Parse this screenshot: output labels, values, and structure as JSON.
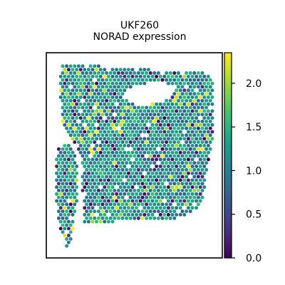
{
  "chart_data": {
    "type": "heatmap",
    "title_lines": [
      "UKF260",
      "NORAD expression"
    ],
    "xlabel": "",
    "ylabel": "",
    "grid": false,
    "colormap": "viridis",
    "colorbar": {
      "range": [
        0.0,
        2.35
      ],
      "ticks": [
        0.0,
        0.5,
        1.0,
        1.5,
        2.0
      ],
      "tick_labels": [
        "0.0",
        "0.5",
        "1.0",
        "1.5",
        "2.0"
      ]
    },
    "spots": {
      "description_note": "Hexagonal spatial transcriptomics spots; per-spot NORAD expression values in [0, 2.35], typical around 1.0–1.5.",
      "value_range": [
        0.0,
        2.35
      ],
      "typical_value": 1.2
    }
  }
}
